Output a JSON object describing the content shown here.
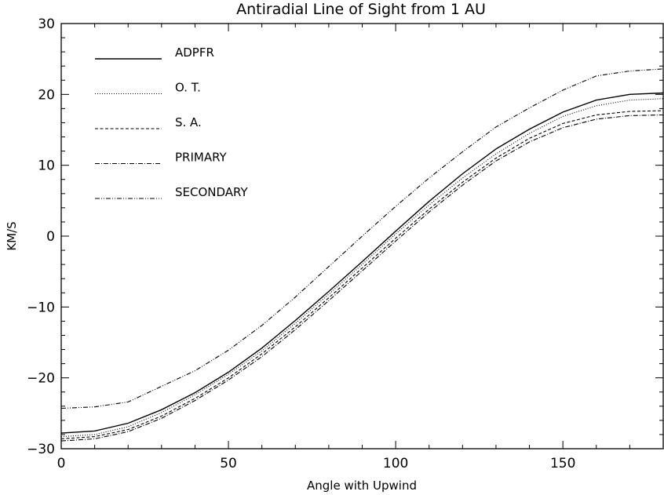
{
  "chart_data": {
    "type": "line",
    "title": "Antiradial Line of Sight from 1 AU",
    "xlabel": "Angle with Upwind",
    "ylabel": "KM/S",
    "xlim": [
      0,
      180
    ],
    "ylim": [
      -30,
      30
    ],
    "xticks": [
      0,
      50,
      100,
      150
    ],
    "xtick_labels": [
      "0",
      "50",
      "100",
      "150"
    ],
    "yticks": [
      -30,
      -20,
      -10,
      0,
      10,
      20,
      30
    ],
    "ytick_labels": [
      "−30",
      "−20",
      "−10",
      "0",
      "10",
      "20",
      "30"
    ],
    "grid": false,
    "legend_position": "top-left",
    "x": [
      0,
      10,
      20,
      30,
      40,
      50,
      60,
      70,
      80,
      90,
      100,
      110,
      120,
      130,
      140,
      150,
      160,
      170,
      180
    ],
    "series": [
      {
        "name": "ADPFR",
        "style": "solid",
        "values": [
          -27.8,
          -27.5,
          -26.4,
          -24.5,
          -22.1,
          -19.2,
          -15.8,
          -11.9,
          -7.8,
          -3.6,
          0.7,
          4.9,
          8.8,
          12.3,
          15.1,
          17.5,
          19.2,
          20.0,
          20.2
        ]
      },
      {
        "name": "O. T.",
        "style": "dotted",
        "values": [
          -28.3,
          -28.0,
          -26.9,
          -24.9,
          -22.4,
          -19.5,
          -16.2,
          -12.3,
          -8.2,
          -4.0,
          0.3,
          4.4,
          8.2,
          11.6,
          14.5,
          16.9,
          18.4,
          19.2,
          19.4
        ]
      },
      {
        "name": "S. A.",
        "style": "dashed",
        "values": [
          -28.6,
          -28.3,
          -27.3,
          -25.4,
          -22.9,
          -20.0,
          -16.6,
          -12.8,
          -8.7,
          -4.5,
          -0.3,
          3.8,
          7.6,
          11.0,
          13.8,
          15.9,
          17.1,
          17.6,
          17.7
        ]
      },
      {
        "name": "PRIMARY",
        "style": "dashdot",
        "values": [
          -28.9,
          -28.6,
          -27.6,
          -25.7,
          -23.2,
          -20.3,
          -17.0,
          -13.2,
          -9.1,
          -4.9,
          -0.7,
          3.4,
          7.2,
          10.6,
          13.3,
          15.3,
          16.5,
          17.0,
          17.1
        ]
      },
      {
        "name": "SECONDARY",
        "style": "dashdotdot",
        "values": [
          -24.3,
          -24.1,
          -23.4,
          -21.2,
          -19.0,
          -16.1,
          -12.6,
          -8.6,
          -4.3,
          0.0,
          4.2,
          8.2,
          11.9,
          15.4,
          18.1,
          20.6,
          22.6,
          23.3,
          23.6
        ]
      }
    ]
  }
}
